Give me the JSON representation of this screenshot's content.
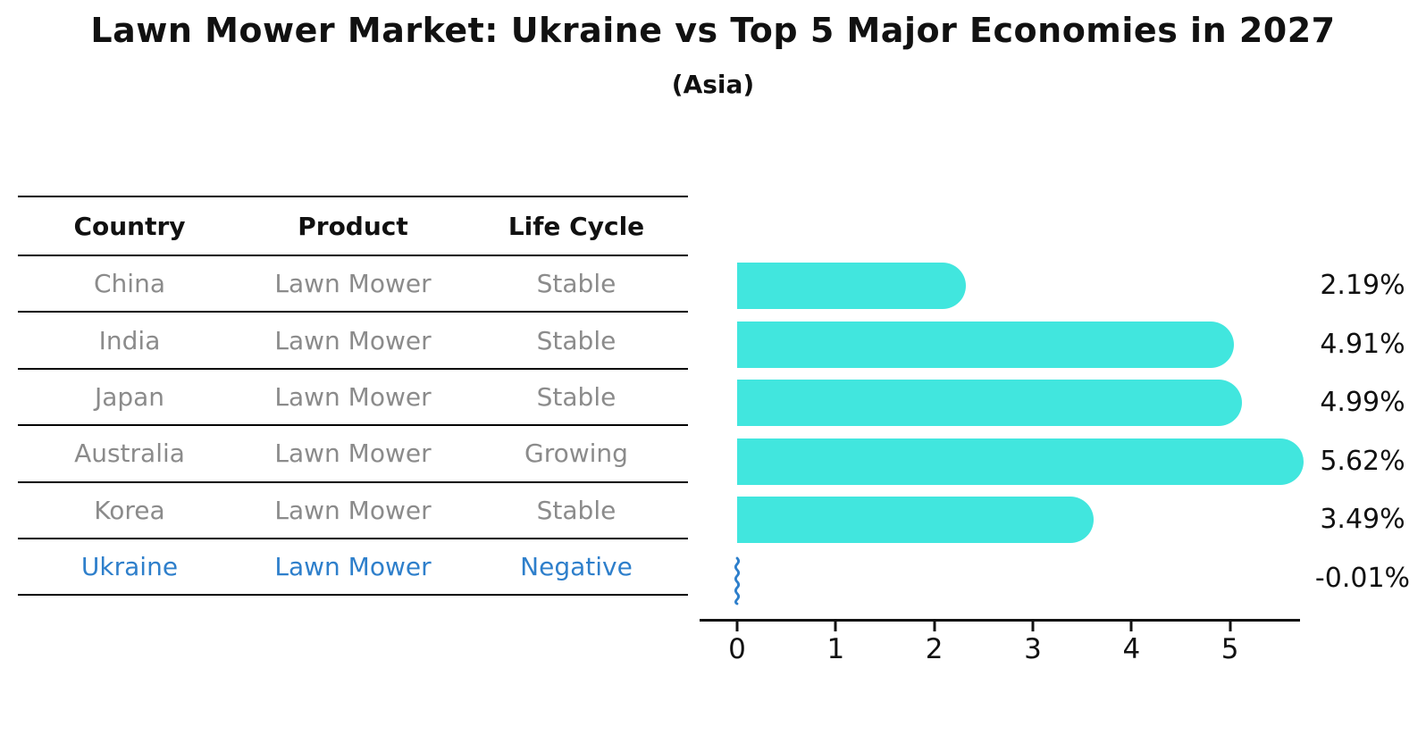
{
  "title": "Lawn Mower Market: Ukraine vs Top 5 Major Economies in 2027",
  "subtitle": "(Asia)",
  "colors": {
    "bar": "#41E6DE",
    "highlight_blue": "#2E7FCB",
    "muted_text": "#8b8b8b",
    "text": "#111111"
  },
  "table": {
    "headers": [
      "Country",
      "Product",
      "Life Cycle"
    ],
    "rows": [
      {
        "country": "China",
        "product": "Lawn Mower",
        "life_cycle": "Stable",
        "highlight": false
      },
      {
        "country": "India",
        "product": "Lawn Mower",
        "life_cycle": "Stable",
        "highlight": false
      },
      {
        "country": "Japan",
        "product": "Lawn Mower",
        "life_cycle": "Stable",
        "highlight": false
      },
      {
        "country": "Australia",
        "product": "Lawn Mower",
        "life_cycle": "Growing",
        "highlight": false
      },
      {
        "country": "Korea",
        "product": "Lawn Mower",
        "life_cycle": "Stable",
        "highlight": false
      },
      {
        "country": "Ukraine",
        "product": "Lawn Mower",
        "life_cycle": "Negative",
        "highlight": true
      }
    ]
  },
  "chart_data": {
    "type": "bar",
    "orientation": "horizontal",
    "title": "Lawn Mower Market: Ukraine vs Top 5 Major Economies in 2027",
    "subtitle": "(Asia)",
    "categories": [
      "China",
      "India",
      "Japan",
      "Australia",
      "Korea",
      "Ukraine"
    ],
    "values": [
      2.19,
      4.91,
      4.99,
      5.62,
      3.49,
      -0.01
    ],
    "value_labels": [
      "2.19%",
      "4.91%",
      "4.99%",
      "5.62%",
      "3.49%",
      "-0.01%"
    ],
    "xlabel": "",
    "ylabel": "",
    "xlim": [
      0,
      5.71
    ],
    "xticks": [
      0,
      1,
      2,
      3,
      4,
      5
    ],
    "grid": false,
    "legend": false,
    "bar_color": "#41E6DE",
    "highlight_index": 5,
    "highlight_style": "blue wavy line at zero for negative value"
  }
}
